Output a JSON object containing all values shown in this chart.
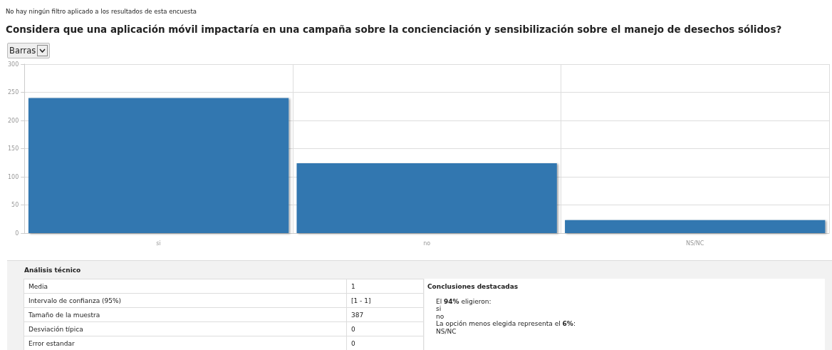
{
  "chart_data": {
    "type": "bar",
    "title": "Considera que una aplicación móvil impactaría en una campaña sobre la concienciación y sensibilización sobre el manejo de desechos sólidos?",
    "categories": [
      "si",
      "no",
      "NS/NC"
    ],
    "values": [
      240,
      124,
      23
    ],
    "color": "#3277b0",
    "ylim": [
      0,
      300
    ],
    "yticks": [
      0,
      50,
      100,
      150,
      200,
      250,
      300
    ],
    "grid": true,
    "annotations": [
      "No hay ningún filtro aplicado a los resultados de esta encuesta",
      "Barras",
      "Análisis técnico",
      "Media",
      "1",
      "Intervalo de confianza (95%)",
      "[1 - 1]",
      "Tamaño de la muestra",
      "387",
      "Desviación típica",
      "0",
      "Error estandar",
      "0",
      "Conclusiones destacadas",
      "El 94% eligieron:",
      "si",
      "no",
      "La opción menos elegida representa el 6%:",
      "NS/NC"
    ]
  }
}
